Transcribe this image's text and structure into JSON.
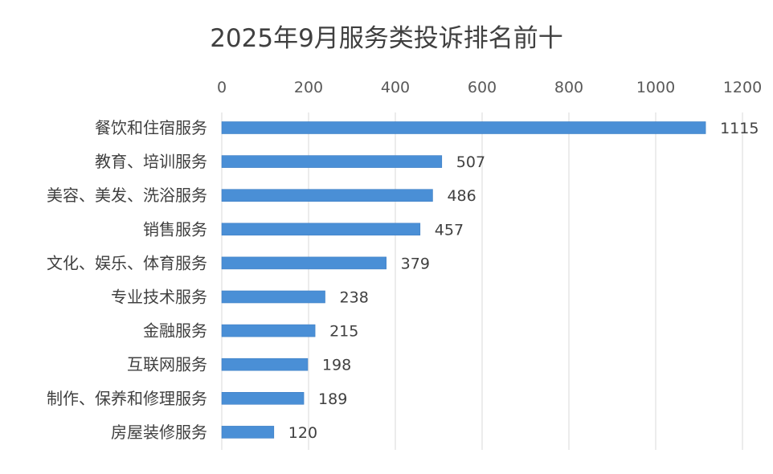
{
  "chart_data": {
    "type": "bar",
    "orientation": "horizontal",
    "title": "2025年9月服务类投诉排名前十",
    "xlabel": "",
    "ylabel": "",
    "xlim": [
      0,
      1200
    ],
    "ticks": [
      0,
      200,
      400,
      600,
      800,
      1000,
      1200
    ],
    "tick_labels": [
      "0",
      "200",
      "400",
      "600",
      "800",
      "1000",
      "1200"
    ],
    "axis_position": "top",
    "grid": true,
    "color": "#4a8fd6",
    "categories": [
      "餐饮和住宿服务",
      "教育、培训服务",
      "美容、美发、洗浴服务",
      "销售服务",
      "文化、娱乐、体育服务",
      "专业技术服务",
      "金融服务",
      "互联网服务",
      "制作、保养和修理服务",
      "房屋装修服务"
    ],
    "values": [
      1115,
      507,
      486,
      457,
      379,
      238,
      215,
      198,
      189,
      120
    ],
    "data_labels": [
      "1115",
      "507",
      "486",
      "457",
      "379",
      "238",
      "215",
      "198",
      "189",
      "120"
    ]
  }
}
